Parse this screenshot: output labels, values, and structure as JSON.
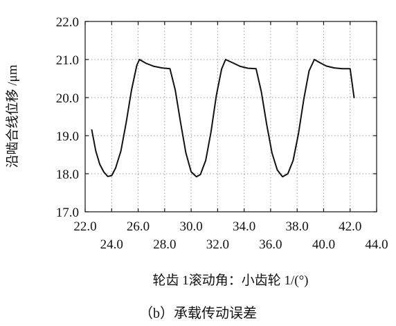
{
  "chart_data": {
    "type": "line",
    "caption": "（b）承载传动误差",
    "xlabel": "轮齿 1滚动角：小齿轮 1/(°)",
    "ylabel": "沿啮合线位移 /μm",
    "xlim": [
      22.0,
      44.0
    ],
    "ylim": [
      17.0,
      22.0
    ],
    "x_ticks_upper": [
      "22.0",
      "26.0",
      "30.0",
      "34.0",
      "38.0",
      "42.0"
    ],
    "x_ticks_lower": [
      "24.0",
      "28.0",
      "32.0",
      "36.0",
      "40.0",
      "44.0"
    ],
    "y_ticks": [
      "17.0",
      "18.0",
      "19.0",
      "20.0",
      "21.0",
      "22.0"
    ],
    "grid": true,
    "series": [
      {
        "color": "#111111",
        "x": [
          22.5,
          22.8,
          23.1,
          23.4,
          23.7,
          24.0,
          24.3,
          24.7,
          25.1,
          25.5,
          25.9,
          26.1,
          26.6,
          27.2,
          27.8,
          28.4,
          28.8,
          29.2,
          29.6,
          30.0,
          30.4,
          30.7,
          31.1,
          31.5,
          31.9,
          32.3,
          32.6,
          33.1,
          33.7,
          34.3,
          34.9,
          35.3,
          35.7,
          36.1,
          36.5,
          36.9,
          37.3,
          37.7,
          38.1,
          38.5,
          38.9,
          39.3,
          39.7,
          40.2,
          40.8,
          41.4,
          42.0,
          42.3
        ],
        "y": [
          19.15,
          18.6,
          18.25,
          18.05,
          17.93,
          17.95,
          18.15,
          18.6,
          19.35,
          20.2,
          20.85,
          21.0,
          20.9,
          20.82,
          20.78,
          20.76,
          20.2,
          19.35,
          18.55,
          18.05,
          17.92,
          17.98,
          18.35,
          19.1,
          20.05,
          20.75,
          21.0,
          20.92,
          20.82,
          20.77,
          20.76,
          20.15,
          19.3,
          18.55,
          18.1,
          17.92,
          18.0,
          18.35,
          19.05,
          19.95,
          20.7,
          21.0,
          20.92,
          20.83,
          20.78,
          20.76,
          20.76,
          20.0
        ]
      }
    ]
  }
}
